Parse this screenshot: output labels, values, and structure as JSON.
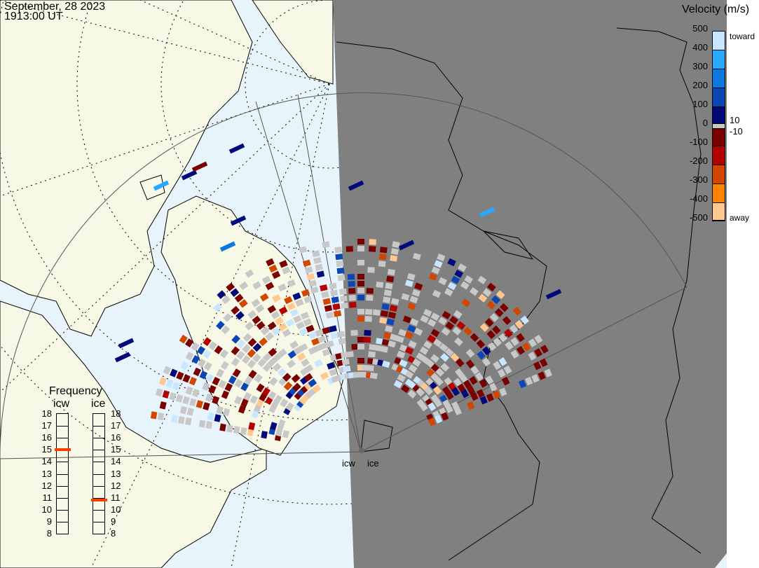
{
  "title": {
    "date": "September, 28 2023",
    "time": "1913:00 UT"
  },
  "colorbar": {
    "title": "Velocity (m/s)",
    "ticks": [
      "500",
      "400",
      "300",
      "200",
      "100",
      "0",
      "-100",
      "-200",
      "-300",
      "-400",
      "-500"
    ],
    "label_toward": "toward",
    "label_away": "away",
    "label_pos_threshold": "10",
    "label_neg_threshold": "-10",
    "colors": [
      "#c8e6ff",
      "#28a8ff",
      "#0a78e0",
      "#0a46b4",
      "#000a78",
      "#c8c8c8",
      "#7a0000",
      "#b40000",
      "#d24600",
      "#ff8200",
      "#ffc890"
    ]
  },
  "frequency": {
    "title": "Frequency",
    "radars": [
      {
        "name": "icw",
        "value_mhz": 15.0
      },
      {
        "name": "ice",
        "value_mhz": 10.8
      }
    ],
    "scale": [
      "18",
      "17",
      "16",
      "15",
      "14",
      "13",
      "12",
      "11",
      "10",
      "9",
      "8"
    ],
    "range": [
      8,
      18
    ],
    "marker_color": "#ff3c00"
  },
  "radar_sites": [
    {
      "label": "icw"
    },
    {
      "label": "ice"
    }
  ],
  "map": {
    "land_color": "#f8f8e6",
    "ocean_color": "#e8f4fc",
    "night_color": "#808080",
    "groundscatter_color": "#c8c8c8"
  }
}
